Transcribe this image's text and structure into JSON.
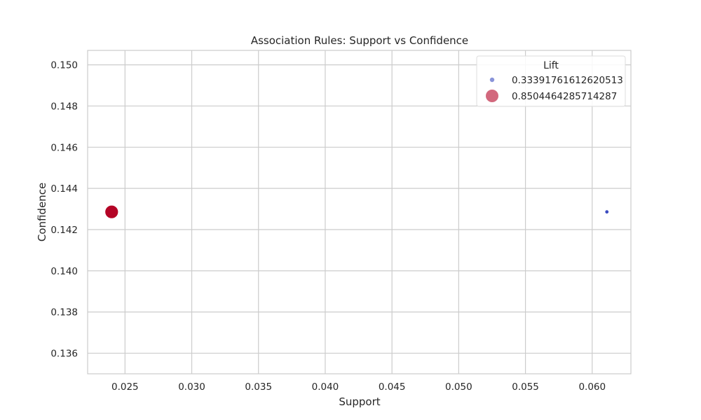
{
  "chart_data": {
    "type": "scatter",
    "title": "Association Rules: Support vs Confidence",
    "xlabel": "Support",
    "ylabel": "Confidence",
    "xlim": [
      0.0222,
      0.0629
    ],
    "ylim": [
      0.135,
      0.1507
    ],
    "xticks": [
      0.025,
      0.03,
      0.035,
      0.04,
      0.045,
      0.05,
      0.055,
      0.06
    ],
    "xtick_labels": [
      "0.025",
      "0.030",
      "0.035",
      "0.040",
      "0.045",
      "0.050",
      "0.055",
      "0.060"
    ],
    "yticks": [
      0.136,
      0.138,
      0.14,
      0.142,
      0.144,
      0.146,
      0.148,
      0.15
    ],
    "ytick_labels": [
      "0.136",
      "0.138",
      "0.140",
      "0.142",
      "0.144",
      "0.146",
      "0.148",
      "0.150"
    ],
    "grid": true,
    "legend": {
      "title": "Lift",
      "placement": "top-right",
      "entries": [
        {
          "label": "0.33391761612620513",
          "lift": 0.33391761612620513,
          "color": "#3b4cc0"
        },
        {
          "label": "0.8504464285714287",
          "lift": 0.8504464285714287,
          "color": "#b40426"
        }
      ]
    },
    "points": [
      {
        "x": 0.024,
        "y": 0.14286,
        "lift": 0.8504464285714287,
        "color": "#b40426"
      },
      {
        "x": 0.0611,
        "y": 0.14286,
        "lift": 0.33391761612620513,
        "color": "#3b4cc0"
      }
    ]
  }
}
